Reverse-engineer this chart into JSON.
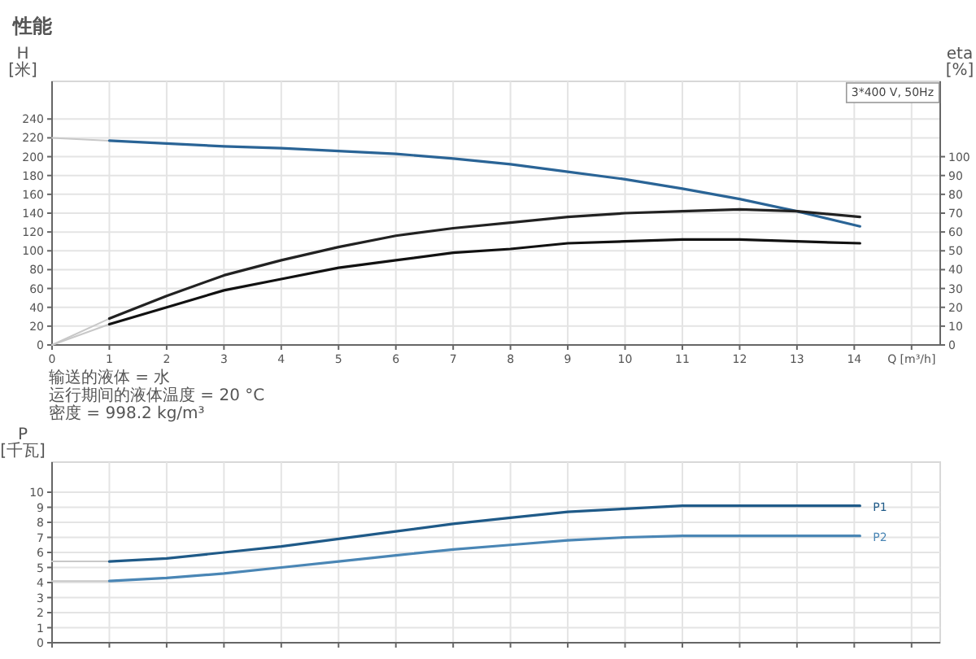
{
  "chart_data": [
    {
      "type": "line",
      "title": "性能",
      "xlabel": "Q [m³/h]",
      "ylabel": "H [米]",
      "y2label": "eta [%]",
      "annotations": [
        "3*400 V, 50Hz",
        "输送的液体 = 水",
        "运行期间的液体温度 = 20 °C",
        "密度 = 998.2 kg/m³"
      ],
      "xlim": [
        0,
        15.5
      ],
      "xticks": [
        0,
        1,
        2,
        3,
        4,
        5,
        6,
        7,
        8,
        9,
        10,
        11,
        12,
        13,
        14,
        {
          "value": 15,
          "label": null
        }
      ],
      "ylim": [
        0,
        280
      ],
      "yticks": [
        0,
        20,
        40,
        60,
        80,
        100,
        120,
        140,
        160,
        180,
        200,
        220,
        240
      ],
      "y2lim": [
        0,
        140
      ],
      "y2ticks": [
        0,
        10,
        20,
        30,
        40,
        50,
        60,
        70,
        80,
        90,
        100
      ],
      "grid": true,
      "series": [
        {
          "color": "#c8c8c8",
          "x": [
            0,
            1
          ],
          "values": [
            220,
            217
          ]
        },
        {
          "color": "#2a6496",
          "x": [
            1,
            2,
            3,
            4,
            5,
            6,
            7,
            8,
            9,
            10,
            11,
            12,
            13,
            14.1
          ],
          "values": [
            217,
            214,
            211,
            209,
            206,
            203,
            198,
            192,
            184,
            176,
            166,
            155,
            142,
            126
          ]
        },
        {
          "color": "#c8c8c8",
          "axis": "y2",
          "x": [
            0,
            1
          ],
          "values": [
            0,
            14
          ]
        },
        {
          "color": "#222222",
          "axis": "y2",
          "x": [
            1,
            2,
            3,
            4,
            5,
            6,
            7,
            8,
            9,
            10,
            11,
            12,
            13,
            14.1
          ],
          "values": [
            14,
            26,
            37,
            45,
            52,
            58,
            62,
            65,
            68,
            70,
            71,
            72,
            71,
            68
          ]
        },
        {
          "color": "#c8c8c8",
          "axis": "y2",
          "x": [
            0,
            1
          ],
          "values": [
            0,
            11
          ]
        },
        {
          "color": "#111111",
          "axis": "y2",
          "x": [
            1,
            2,
            3,
            4,
            5,
            6,
            7,
            8,
            9,
            10,
            11,
            12,
            13,
            14.1
          ],
          "values": [
            11,
            20,
            29,
            35,
            41,
            45,
            49,
            51,
            54,
            55,
            56,
            56,
            55,
            54
          ]
        }
      ]
    },
    {
      "type": "line",
      "ylabel": "P [千瓦]",
      "tick_labels": "y",
      "xlim": [
        0,
        15.5
      ],
      "xticks": [
        0,
        1,
        2,
        3,
        4,
        5,
        6,
        7,
        8,
        9,
        10,
        11,
        12,
        13,
        14,
        {
          "value": 15,
          "label": null
        }
      ],
      "ylim": [
        0,
        12
      ],
      "yticks": [
        0,
        1,
        2,
        3,
        4,
        5,
        6,
        7,
        8,
        9,
        10
      ],
      "grid": true,
      "series": [
        {
          "color": "#c8c8c8",
          "x": [
            0,
            1
          ],
          "values": [
            5.4,
            5.4
          ]
        },
        {
          "name": "P1",
          "color": "#1f5a88",
          "x": [
            1,
            2,
            3,
            4,
            5,
            6,
            7,
            8,
            9,
            10,
            11,
            12,
            13,
            14.1
          ],
          "values": [
            5.4,
            5.6,
            6.0,
            6.4,
            6.9,
            7.4,
            7.9,
            8.3,
            8.7,
            8.9,
            9.1,
            9.1,
            9.1,
            9.1
          ]
        },
        {
          "color": "#c8c8c8",
          "x": [
            0,
            1
          ],
          "values": [
            4.1,
            4.1
          ]
        },
        {
          "name": "P2",
          "color": "#4a86b5",
          "x": [
            1,
            2,
            3,
            4,
            5,
            6,
            7,
            8,
            9,
            10,
            11,
            12,
            13,
            14.1
          ],
          "values": [
            4.1,
            4.3,
            4.6,
            5.0,
            5.4,
            5.8,
            6.2,
            6.5,
            6.8,
            7.0,
            7.1,
            7.1,
            7.1,
            7.1
          ]
        }
      ]
    }
  ]
}
